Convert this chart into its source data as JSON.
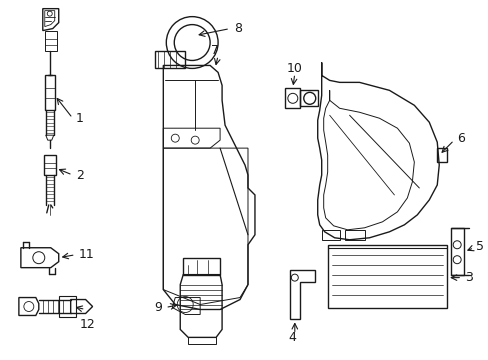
{
  "background_color": "#ffffff",
  "line_color": "#1a1a1a",
  "line_width": 1.0,
  "figsize": [
    4.89,
    3.6
  ],
  "dpi": 100
}
